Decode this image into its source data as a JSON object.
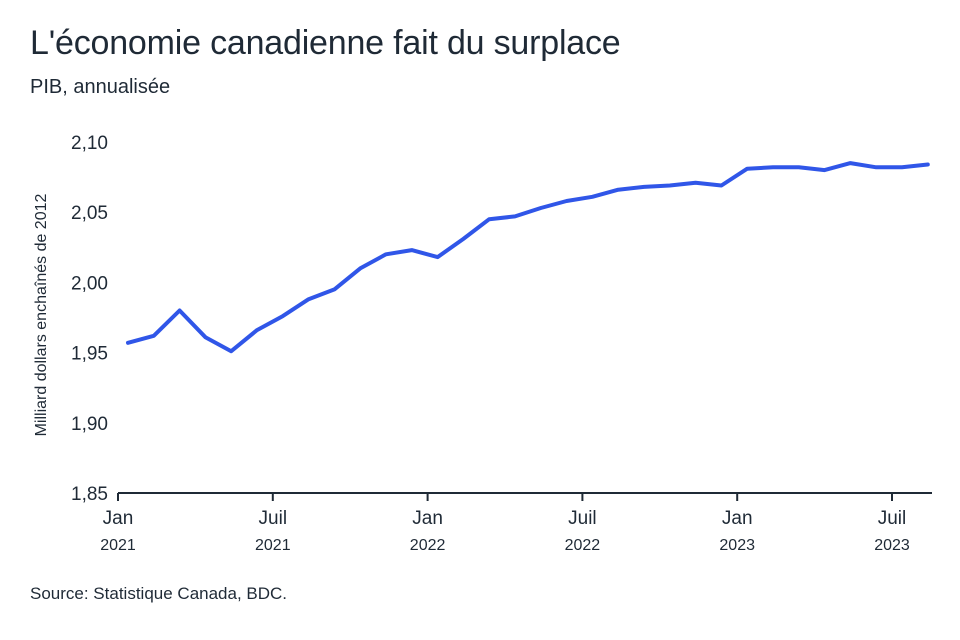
{
  "header": {
    "title": "L'économie canadienne fait du surplace",
    "subtitle": "PIB, annualisée"
  },
  "footer": {
    "source": "Source: Statistique Canada, BDC."
  },
  "colors": {
    "line": "#3056e8",
    "axis": "#1f2a36",
    "text": "#1f2a36"
  },
  "chart_data": {
    "type": "line",
    "title": "L'économie canadienne fait du surplace",
    "subtitle": "PIB, annualisée",
    "ylabel": "Milliard dollars enchaînés de 2012",
    "xlabel": "",
    "ylim": [
      1.85,
      2.1
    ],
    "yticks": [
      "1,85",
      "1,90",
      "1,95",
      "2,00",
      "2,05",
      "2,10"
    ],
    "ytick_values": [
      1.85,
      1.9,
      1.95,
      2.0,
      2.05,
      2.1
    ],
    "xtick_labels": [
      {
        "month": "Jan",
        "year": "2021",
        "index": 0
      },
      {
        "month": "Juil",
        "year": "2021",
        "index": 6
      },
      {
        "month": "Jan",
        "year": "2022",
        "index": 12
      },
      {
        "month": "Juil",
        "year": "2022",
        "index": 18
      },
      {
        "month": "Jan",
        "year": "2023",
        "index": 24
      },
      {
        "month": "Juil",
        "year": "2023",
        "index": 30
      }
    ],
    "grid": false,
    "series": [
      {
        "x": [
          "2021-01",
          "2021-02",
          "2021-03",
          "2021-04",
          "2021-05",
          "2021-06",
          "2021-07",
          "2021-08",
          "2021-09",
          "2021-10",
          "2021-11",
          "2021-12",
          "2022-01",
          "2022-02",
          "2022-03",
          "2022-04",
          "2022-05",
          "2022-06",
          "2022-07",
          "2022-08",
          "2022-09",
          "2022-10",
          "2022-11",
          "2022-12",
          "2023-01",
          "2023-02",
          "2023-03",
          "2023-04",
          "2023-05",
          "2023-06",
          "2023-07",
          "2023-08"
        ],
        "values": [
          1.957,
          1.962,
          1.98,
          1.961,
          1.951,
          1.966,
          1.976,
          1.988,
          1.995,
          2.01,
          2.02,
          2.023,
          2.018,
          2.031,
          2.045,
          2.047,
          2.053,
          2.058,
          2.061,
          2.066,
          2.068,
          2.069,
          2.071,
          2.069,
          2.081,
          2.082,
          2.082,
          2.08,
          2.085,
          2.082,
          2.082,
          2.084
        ]
      }
    ]
  }
}
